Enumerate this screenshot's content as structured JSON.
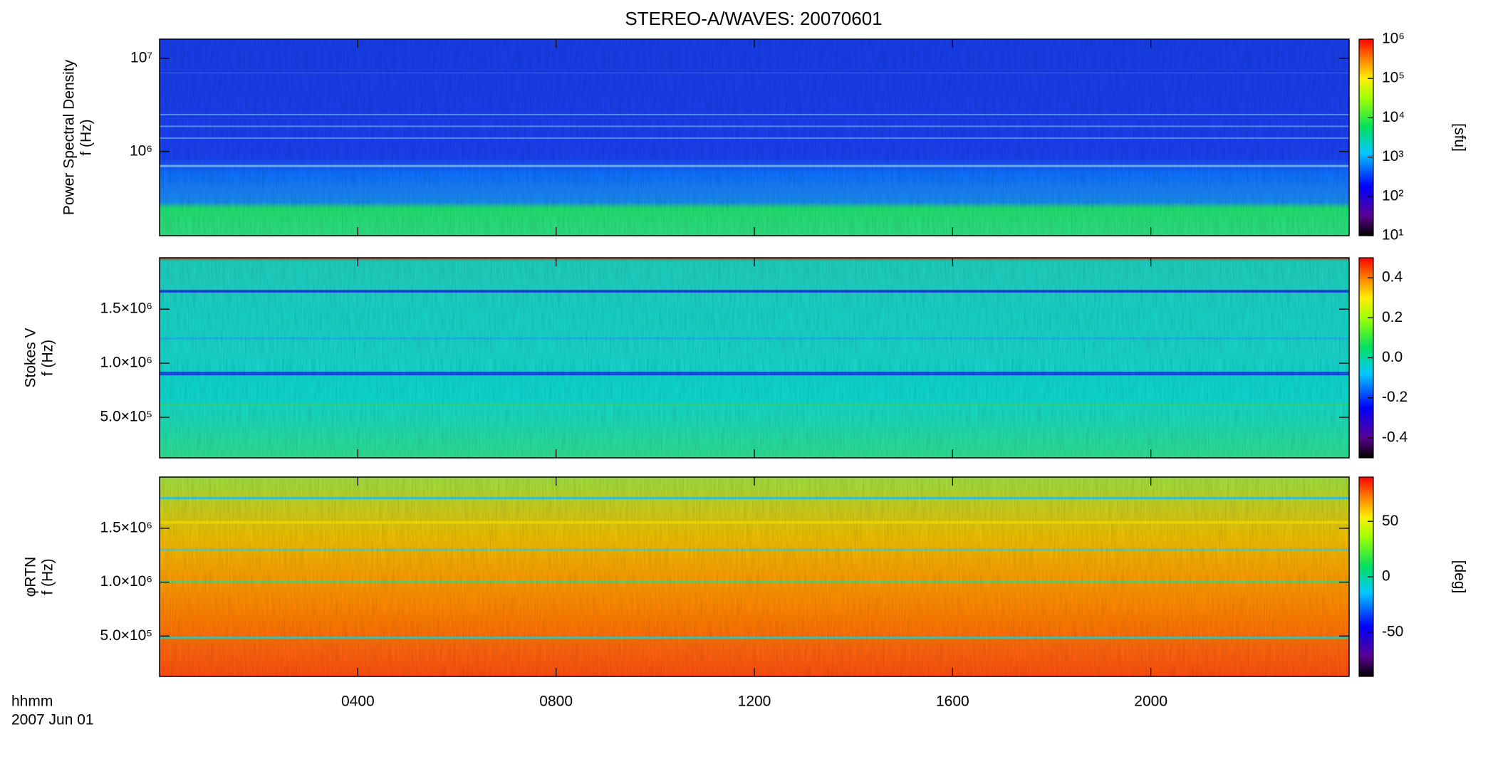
{
  "title": "STEREO-A/WAVES: 20070601",
  "x_label": [
    "hhmm",
    "2007 Jun 01"
  ],
  "chart_data": [
    {
      "type": "spectrogram",
      "ylabel": [
        "Power Spectral Density",
        "f (Hz)"
      ],
      "log_y": true,
      "xlim": [
        0,
        24
      ],
      "xticks": [
        {
          "value": 4,
          "label": "0400"
        },
        {
          "value": 8,
          "label": "0800"
        },
        {
          "value": 12,
          "label": "1200"
        },
        {
          "value": 16,
          "label": "1600"
        },
        {
          "value": 20,
          "label": "2000"
        }
      ],
      "ylim": [
        125000,
        16025000
      ],
      "yticks": [
        {
          "value": 1000000,
          "label": "10⁶"
        },
        {
          "value": 10000000,
          "label": "10⁷"
        }
      ],
      "colorbar": {
        "label": "[sfu]",
        "log": true,
        "lim": [
          10,
          1000000
        ],
        "ticks": [
          {
            "value": 10,
            "label": "10¹"
          },
          {
            "value": 100,
            "label": "10²"
          },
          {
            "value": 1000,
            "label": "10³"
          },
          {
            "value": 10000,
            "label": "10⁴"
          },
          {
            "value": 100000,
            "label": "10⁵"
          },
          {
            "value": 1000000,
            "label": "10⁶"
          }
        ]
      }
    },
    {
      "type": "spectrogram",
      "ylabel": [
        "Stokes V",
        "f (Hz)"
      ],
      "log_y": false,
      "xlim": [
        0,
        24
      ],
      "xticks": [
        {
          "value": 4,
          "label": "0400"
        },
        {
          "value": 8,
          "label": "0800"
        },
        {
          "value": 12,
          "label": "1200"
        },
        {
          "value": 16,
          "label": "1600"
        },
        {
          "value": 20,
          "label": "2000"
        }
      ],
      "ylim": [
        125000,
        1975000
      ],
      "yticks": [
        {
          "value": 500000,
          "label": "5.0×10⁵"
        },
        {
          "value": 1000000,
          "label": "1.0×10⁶"
        },
        {
          "value": 1500000,
          "label": "1.5×10⁶"
        }
      ],
      "colorbar": {
        "log": false,
        "lim": [
          -0.5,
          0.5
        ],
        "ticks": [
          -0.4,
          -0.2,
          {
            "value": 0,
            "label": "0.0"
          },
          0.2,
          0.4
        ]
      }
    },
    {
      "type": "spectrogram",
      "ylabel": [
        "φRTN",
        "f (Hz)"
      ],
      "log_y": false,
      "xlim": [
        0,
        24
      ],
      "xticks": [
        {
          "value": 4,
          "label": "0400"
        },
        {
          "value": 8,
          "label": "0800"
        },
        {
          "value": 12,
          "label": "1200"
        },
        {
          "value": 16,
          "label": "1600"
        },
        {
          "value": 20,
          "label": "2000"
        }
      ],
      "ylim": [
        125000,
        1975000
      ],
      "yticks": [
        {
          "value": 500000,
          "label": "5.0×10⁵"
        },
        {
          "value": 1000000,
          "label": "1.0×10⁶"
        },
        {
          "value": 1500000,
          "label": "1.5×10⁶"
        }
      ],
      "colorbar": {
        "label": "[deg]",
        "log": false,
        "lim": [
          -90,
          90
        ],
        "ticks": [
          -50,
          0,
          50
        ]
      }
    }
  ]
}
